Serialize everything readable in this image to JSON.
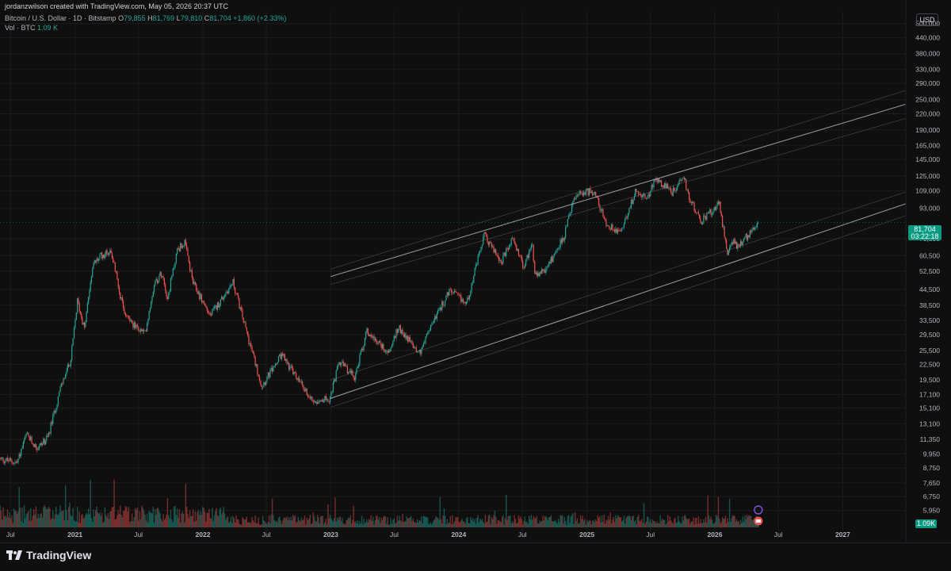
{
  "header": {
    "credit": "jordanzwilson created with TradingView.com, May 05, 2026 20:37 UTC",
    "symbol": "Bitcoin / U.S. Dollar · 1D · Bitstamp",
    "o_label": "O",
    "o_value": "79,855",
    "h_label": "H",
    "h_value": "81,769",
    "l_label": "L",
    "l_value": "79,810",
    "c_label": "C",
    "c_value": "81,704",
    "change": "+1,860 (+2.33%)",
    "vol_label": "Vol · BTC",
    "vol_value": "1.09 K"
  },
  "currency_button": "USD",
  "last_price": {
    "value": "81,704",
    "countdown": "03:22:18",
    "price": 81704
  },
  "volume_tag": "1.09K",
  "brand": "TradingView",
  "colors": {
    "up": "#26a69a",
    "down": "#ef5350",
    "background": "#0f0f0f",
    "channel": "#b2b5be",
    "tag": "#089981"
  },
  "chart_data": {
    "type": "candlestick",
    "scale": "log",
    "ylim": [
      5100,
      560000
    ],
    "xlim": [
      "2020-06-01",
      "2027-06-30"
    ],
    "y_ticks": [
      500000,
      440000,
      380000,
      330000,
      290000,
      250000,
      220000,
      190000,
      165000,
      145000,
      125000,
      109000,
      93000,
      70500,
      60500,
      52500,
      44500,
      38500,
      33500,
      29500,
      25500,
      22500,
      19500,
      17100,
      15100,
      13100,
      11350,
      9950,
      8750,
      7650,
      6750,
      5950
    ],
    "y_tick_labels": [
      "500,000",
      "440,000",
      "380,000",
      "330,000",
      "290,000",
      "250,000",
      "220,000",
      "190,000",
      "165,000",
      "145,000",
      "125,000",
      "109,000",
      "93,000",
      "70,500",
      "60,500",
      "52,500",
      "44,500",
      "38,500",
      "33,500",
      "29,500",
      "25,500",
      "22,500",
      "19,500",
      "17,100",
      "15,100",
      "13,100",
      "11,350",
      "9,950",
      "8,750",
      "7,650",
      "6,750",
      "5,950"
    ],
    "x_ticks": [
      {
        "date": "2020-07-01",
        "label": "Jul",
        "major": false
      },
      {
        "date": "2021-01-01",
        "label": "2021",
        "major": true
      },
      {
        "date": "2021-07-01",
        "label": "Jul",
        "major": false
      },
      {
        "date": "2022-01-01",
        "label": "2022",
        "major": true
      },
      {
        "date": "2022-07-01",
        "label": "Jul",
        "major": false
      },
      {
        "date": "2023-01-01",
        "label": "2023",
        "major": true
      },
      {
        "date": "2023-07-01",
        "label": "Jul",
        "major": false
      },
      {
        "date": "2024-01-01",
        "label": "2024",
        "major": true
      },
      {
        "date": "2024-07-01",
        "label": "Jul",
        "major": false
      },
      {
        "date": "2025-01-01",
        "label": "2025",
        "major": true
      },
      {
        "date": "2025-07-01",
        "label": "Jul",
        "major": false
      },
      {
        "date": "2026-01-01",
        "label": "2026",
        "major": true
      },
      {
        "date": "2026-07-01",
        "label": "Jul",
        "major": false
      },
      {
        "date": "2027-01-01",
        "label": "2027",
        "major": true
      }
    ],
    "price_anchors": [
      [
        "2020-06-01",
        9500
      ],
      [
        "2020-07-20",
        9200
      ],
      [
        "2020-08-15",
        11800
      ],
      [
        "2020-09-15",
        10500
      ],
      [
        "2020-10-15",
        11500
      ],
      [
        "2020-11-20",
        18000
      ],
      [
        "2020-12-20",
        23500
      ],
      [
        "2021-01-08",
        40000
      ],
      [
        "2021-01-28",
        31000
      ],
      [
        "2021-02-20",
        55000
      ],
      [
        "2021-03-13",
        60000
      ],
      [
        "2021-04-14",
        63500
      ],
      [
        "2021-05-19",
        37000
      ],
      [
        "2021-06-22",
        31500
      ],
      [
        "2021-07-20",
        29800
      ],
      [
        "2021-08-15",
        47000
      ],
      [
        "2021-09-07",
        52000
      ],
      [
        "2021-09-22",
        41000
      ],
      [
        "2021-10-20",
        64000
      ],
      [
        "2021-11-10",
        68000
      ],
      [
        "2021-12-04",
        47000
      ],
      [
        "2022-01-22",
        35000
      ],
      [
        "2022-03-28",
        47500
      ],
      [
        "2022-05-12",
        28000
      ],
      [
        "2022-06-18",
        18500
      ],
      [
        "2022-08-14",
        24500
      ],
      [
        "2022-09-30",
        19500
      ],
      [
        "2022-11-09",
        16200
      ],
      [
        "2022-12-30",
        16500
      ],
      [
        "2023-01-25",
        23000
      ],
      [
        "2023-03-10",
        20000
      ],
      [
        "2023-04-14",
        30500
      ],
      [
        "2023-06-15",
        25000
      ],
      [
        "2023-07-13",
        31500
      ],
      [
        "2023-09-11",
        25000
      ],
      [
        "2023-10-25",
        34500
      ],
      [
        "2023-12-08",
        44000
      ],
      [
        "2024-01-23",
        39000
      ],
      [
        "2024-03-14",
        73000
      ],
      [
        "2024-05-01",
        57000
      ],
      [
        "2024-06-05",
        71000
      ],
      [
        "2024-07-05",
        54000
      ],
      [
        "2024-07-29",
        69000
      ],
      [
        "2024-08-05",
        50000
      ],
      [
        "2024-09-06",
        53000
      ],
      [
        "2024-10-29",
        73000
      ],
      [
        "2024-11-22",
        99000
      ],
      [
        "2024-12-17",
        107000
      ],
      [
        "2025-01-20",
        109000
      ],
      [
        "2025-02-28",
        79000
      ],
      [
        "2025-04-08",
        76000
      ],
      [
        "2025-05-22",
        111000
      ],
      [
        "2025-06-22",
        100000
      ],
      [
        "2025-07-14",
        122000
      ],
      [
        "2025-09-01",
        108000
      ],
      [
        "2025-10-06",
        125000
      ],
      [
        "2025-10-11",
        110000
      ],
      [
        "2025-11-21",
        82000
      ],
      [
        "2026-01-14",
        97000
      ],
      [
        "2026-02-06",
        60000
      ],
      [
        "2026-02-18",
        70000
      ],
      [
        "2026-03-10",
        65000
      ],
      [
        "2026-04-14",
        76000
      ],
      [
        "2026-05-05",
        81704
      ]
    ],
    "channel_lines": [
      {
        "start": [
          "2022-12-31",
          50000
        ],
        "end": [
          "2027-06-30",
          240000
        ],
        "style": "main"
      },
      {
        "start": [
          "2022-12-31",
          53500
        ],
        "end": [
          "2027-06-30",
          272000
        ],
        "style": "thin"
      },
      {
        "start": [
          "2022-12-31",
          46500
        ],
        "end": [
          "2027-06-30",
          211000
        ],
        "style": "thin"
      },
      {
        "start": [
          "2022-12-31",
          16500
        ],
        "end": [
          "2027-06-30",
          97000
        ],
        "style": "main"
      },
      {
        "start": [
          "2022-12-31",
          19500
        ],
        "end": [
          "2027-06-30",
          108000
        ],
        "style": "thin"
      },
      {
        "start": [
          "2022-12-31",
          15200
        ],
        "end": [
          "2027-06-30",
          87000
        ],
        "style": "thin"
      }
    ]
  }
}
